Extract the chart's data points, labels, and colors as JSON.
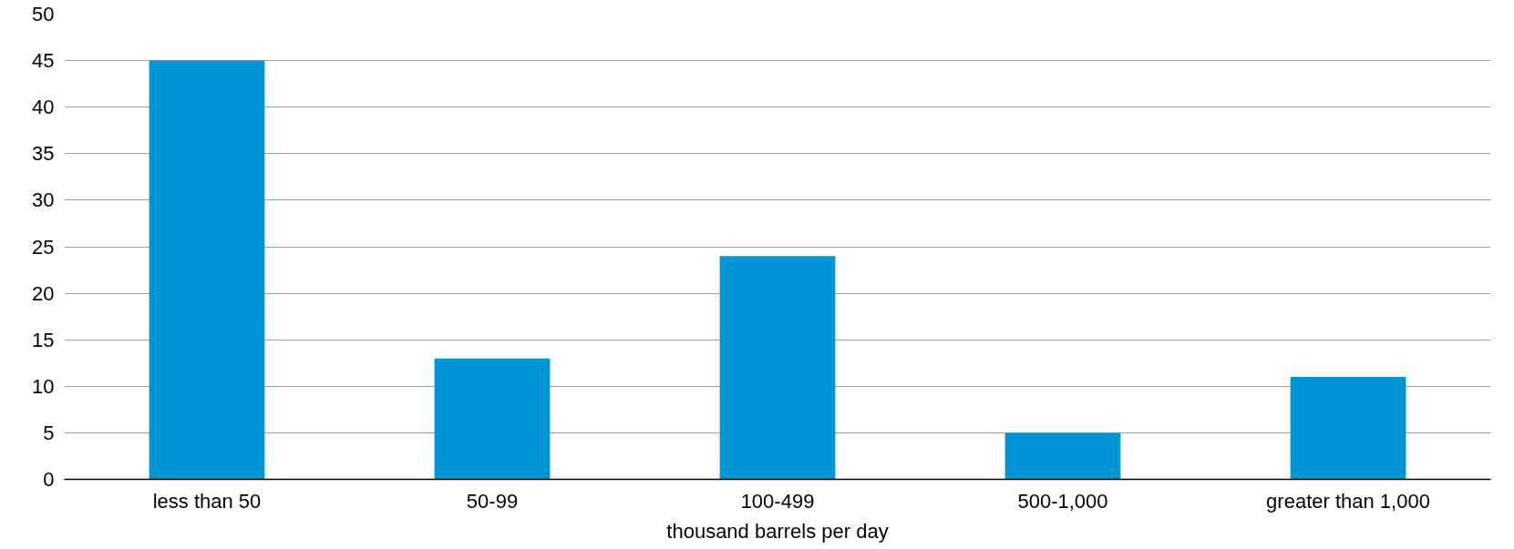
{
  "chart_data": {
    "type": "bar",
    "xlabel": "thousand barrels per day",
    "categories": [
      "less than 50",
      "50-99",
      "100-499",
      "500-1,000",
      "greater than 1,000"
    ],
    "values": [
      45,
      13,
      24,
      5,
      11
    ],
    "color": "#0096d6",
    "ylim": [
      0,
      50
    ],
    "yticks": [
      0,
      5,
      10,
      15,
      20,
      25,
      30,
      35,
      40,
      45,
      50
    ],
    "grid": "y"
  }
}
